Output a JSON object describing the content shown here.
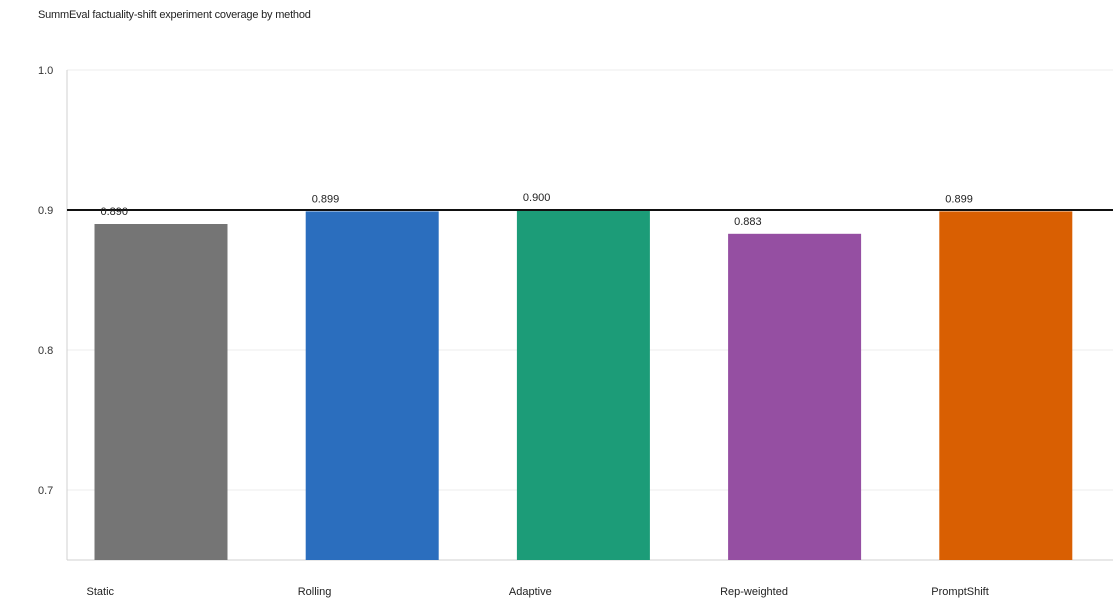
{
  "chart_data": {
    "type": "bar",
    "title": "SummEval factuality-shift experiment coverage by method",
    "xlabel": "",
    "ylabel": "",
    "categories": [
      "Static",
      "Rolling",
      "Adaptive",
      "Rep-weighted",
      "PromptShift"
    ],
    "values": [
      0.89,
      0.899,
      0.9,
      0.883,
      0.899
    ],
    "value_labels": [
      "0.890",
      "0.899",
      "0.900",
      "0.883",
      "0.899"
    ],
    "colors": [
      "#757575",
      "#2b6ebe",
      "#1c9c78",
      "#954fa2",
      "#d95f02"
    ],
    "ylim": [
      0.65,
      1.0
    ],
    "yticks": [
      0.7,
      0.8,
      0.9,
      1.0
    ],
    "ytick_labels": [
      "0.7",
      "0.8",
      "0.9",
      "1.0"
    ],
    "reference_line": 0.9,
    "grid": true,
    "legend": false
  }
}
